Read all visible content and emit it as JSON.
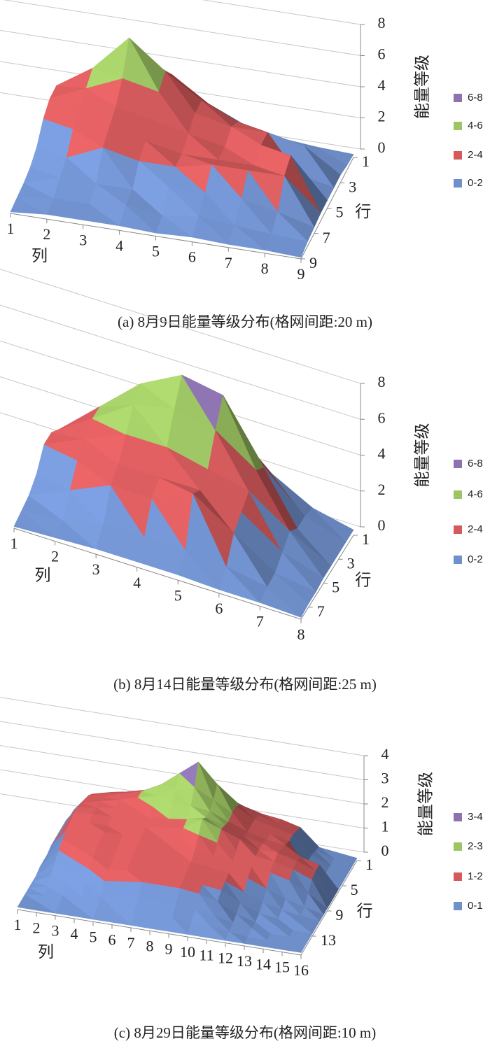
{
  "chart_data": [
    {
      "type": "surface",
      "title": "(a) 8月9日能量等级分布(格网间距:20 m)",
      "xlabel": "列",
      "ylabel": "行",
      "zlabel": "能量等级",
      "x": [
        1,
        2,
        3,
        4,
        5,
        6,
        7,
        8,
        9
      ],
      "y": [
        1,
        2,
        3,
        4,
        5,
        6,
        7,
        8,
        9
      ],
      "z": [
        [
          1.5,
          3.0,
          4.5,
          3.5,
          2.0,
          1.0,
          0.5,
          0.3,
          0.2
        ],
        [
          2.5,
          4.0,
          6.3,
          4.5,
          3.0,
          2.0,
          1.0,
          0.5,
          0.3
        ],
        [
          2.5,
          3.5,
          4.5,
          4.0,
          3.0,
          2.5,
          2.5,
          2.0,
          0.5
        ],
        [
          2.0,
          3.0,
          3.5,
          3.0,
          2.5,
          2.0,
          2.5,
          1.0,
          0.5
        ],
        [
          1.0,
          2.5,
          3.0,
          2.5,
          2.0,
          2.0,
          2.0,
          3.0,
          0.5
        ],
        [
          0.5,
          1.5,
          2.5,
          2.0,
          2.0,
          2.5,
          2.5,
          2.5,
          0.5
        ],
        [
          0.3,
          1.0,
          1.0,
          1.0,
          1.5,
          1.5,
          1.5,
          1.0,
          0.4
        ],
        [
          0.2,
          0.5,
          0.5,
          0.8,
          0.5,
          0.8,
          0.6,
          0.4,
          0.3
        ],
        [
          0.1,
          0.3,
          0.3,
          0.3,
          0.2,
          0.3,
          0.2,
          0.2,
          0.1
        ]
      ],
      "xlim": [
        1,
        9
      ],
      "ylim": [
        1,
        9
      ],
      "zlim": [
        0,
        8
      ],
      "xticks": [
        1,
        2,
        3,
        4,
        5,
        6,
        7,
        8,
        9
      ],
      "yticks": [
        1,
        3,
        5,
        7,
        9
      ],
      "zticks": [
        0,
        2,
        4,
        6,
        8
      ],
      "levels": [
        {
          "name": "6-8",
          "color": "#8c73b0"
        },
        {
          "name": "4-6",
          "color": "#9ec564"
        },
        {
          "name": "2-4",
          "color": "#d45a5c"
        },
        {
          "name": "0-2",
          "color": "#7090cc"
        }
      ]
    },
    {
      "type": "surface",
      "title": "(b) 8月14日能量等级分布(格网间距:25 m)",
      "xlabel": "列",
      "ylabel": "行",
      "zlabel": "能量等级",
      "x": [
        1,
        2,
        3,
        4,
        5,
        6,
        7,
        8
      ],
      "y": [
        1,
        2,
        3,
        4,
        5,
        6,
        7,
        8
      ],
      "z": [
        [
          1.0,
          2.5,
          4.5,
          5.5,
          4.0,
          2.0,
          0.8,
          0.3
        ],
        [
          1.5,
          3.5,
          5.5,
          6.7,
          6.3,
          3.0,
          1.0,
          0.3
        ],
        [
          2.0,
          3.5,
          5.0,
          5.5,
          5.0,
          3.5,
          1.0,
          0.3
        ],
        [
          2.0,
          3.0,
          4.0,
          4.0,
          3.5,
          3.0,
          1.5,
          0.3
        ],
        [
          1.0,
          2.5,
          3.0,
          3.0,
          3.0,
          2.5,
          1.0,
          0.3
        ],
        [
          0.5,
          1.5,
          2.5,
          2.5,
          3.5,
          2.0,
          0.5,
          0.2
        ],
        [
          0.3,
          0.5,
          1.0,
          1.0,
          1.0,
          0.8,
          0.4,
          0.2
        ],
        [
          0.1,
          0.2,
          0.3,
          0.3,
          0.3,
          0.2,
          0.2,
          0.1
        ]
      ],
      "xlim": [
        1,
        8
      ],
      "ylim": [
        1,
        8
      ],
      "zlim": [
        0,
        8
      ],
      "xticks": [
        1,
        2,
        3,
        4,
        5,
        6,
        7,
        8
      ],
      "yticks": [
        1,
        3,
        5,
        7
      ],
      "zticks": [
        0,
        2,
        4,
        6,
        8
      ],
      "levels": [
        {
          "name": "6-8",
          "color": "#8c73b0"
        },
        {
          "name": "4-6",
          "color": "#9ec564"
        },
        {
          "name": "2-4",
          "color": "#d45a5c"
        },
        {
          "name": "0-2",
          "color": "#7090cc"
        }
      ]
    },
    {
      "type": "surface",
      "title": "(c) 8月29日能量等级分布(格网间距:10 m)",
      "xlabel": "列",
      "ylabel": "行",
      "zlabel": "能量等级",
      "x": [
        1,
        2,
        3,
        4,
        5,
        6,
        7,
        8,
        9,
        10,
        11,
        12,
        13,
        14,
        15,
        16
      ],
      "y": [
        1,
        2,
        3,
        4,
        5,
        6,
        7,
        8,
        9,
        10,
        11,
        12,
        13,
        14,
        15,
        16
      ],
      "z": [
        [
          0.2,
          1.0,
          1.2,
          1.3,
          1.5,
          1.6,
          2.0,
          2.2,
          1.8,
          1.5,
          1.3,
          1.2,
          1.0,
          0.3,
          0.2,
          0.1
        ],
        [
          0.2,
          1.2,
          1.4,
          1.6,
          1.8,
          2.2,
          2.6,
          3.0,
          2.4,
          1.8,
          1.5,
          1.3,
          1.1,
          0.4,
          0.2,
          0.1
        ],
        [
          0.3,
          1.3,
          1.5,
          1.8,
          2.0,
          2.4,
          3.0,
          3.6,
          2.8,
          2.0,
          1.6,
          1.4,
          1.2,
          0.5,
          0.2,
          0.1
        ],
        [
          0.3,
          1.4,
          1.6,
          1.8,
          2.0,
          2.2,
          2.6,
          2.8,
          2.4,
          2.0,
          1.6,
          1.4,
          1.2,
          0.5,
          0.2,
          0.1
        ],
        [
          0.3,
          1.5,
          1.6,
          1.7,
          1.8,
          2.0,
          2.2,
          2.3,
          2.2,
          1.9,
          1.6,
          1.4,
          1.3,
          0.6,
          0.2,
          0.1
        ],
        [
          0.3,
          1.5,
          1.6,
          1.6,
          1.7,
          1.8,
          1.9,
          2.0,
          2.2,
          2.0,
          1.7,
          1.5,
          1.4,
          1.2,
          1.0,
          0.1
        ],
        [
          0.3,
          1.4,
          1.5,
          1.5,
          1.6,
          1.7,
          1.8,
          1.9,
          2.4,
          2.1,
          1.8,
          1.5,
          1.5,
          1.3,
          1.0,
          0.1
        ],
        [
          0.2,
          1.3,
          1.4,
          1.5,
          1.5,
          1.6,
          1.6,
          1.7,
          2.0,
          1.8,
          1.6,
          1.5,
          1.4,
          1.2,
          0.9,
          0.1
        ],
        [
          0.2,
          1.2,
          1.3,
          1.4,
          1.4,
          1.5,
          1.5,
          1.5,
          1.6,
          1.5,
          1.4,
          1.3,
          1.2,
          1.0,
          0.6,
          0.1
        ],
        [
          0.2,
          1.0,
          1.2,
          1.3,
          1.3,
          1.4,
          1.4,
          1.4,
          1.4,
          1.3,
          1.2,
          1.1,
          0.8,
          0.5,
          0.3,
          0.1
        ],
        [
          0.1,
          0.8,
          1.0,
          1.2,
          1.2,
          1.3,
          1.3,
          1.3,
          1.3,
          1.2,
          1.1,
          0.8,
          0.5,
          0.3,
          0.2,
          0.1
        ],
        [
          0.1,
          0.5,
          0.8,
          1.0,
          1.1,
          1.2,
          1.2,
          1.2,
          1.2,
          1.1,
          1.0,
          0.6,
          0.3,
          0.2,
          0.2,
          0.1
        ],
        [
          0.1,
          0.3,
          0.5,
          0.7,
          0.9,
          1.0,
          1.1,
          1.1,
          1.1,
          1.0,
          0.8,
          0.4,
          0.2,
          0.2,
          0.1,
          0.1
        ],
        [
          0.1,
          0.2,
          0.3,
          0.4,
          0.5,
          0.6,
          0.7,
          0.7,
          0.7,
          0.6,
          0.5,
          0.3,
          0.2,
          0.1,
          0.1,
          0.1
        ],
        [
          0.1,
          0.1,
          0.2,
          0.2,
          0.3,
          0.3,
          0.4,
          0.4,
          0.4,
          0.3,
          0.3,
          0.2,
          0.1,
          0.1,
          0.1,
          0.1
        ],
        [
          0.1,
          0.1,
          0.1,
          0.1,
          0.1,
          0.1,
          0.1,
          0.1,
          0.1,
          0.1,
          0.1,
          0.1,
          0.1,
          0.1,
          0.1,
          0.1
        ]
      ],
      "xlim": [
        1,
        16
      ],
      "ylim": [
        1,
        16
      ],
      "zlim": [
        0,
        4
      ],
      "xticks": [
        1,
        2,
        3,
        4,
        5,
        6,
        7,
        8,
        9,
        10,
        11,
        12,
        13,
        14,
        15,
        16
      ],
      "yticks": [
        1,
        5,
        9,
        13
      ],
      "zticks": [
        0,
        1,
        2,
        3,
        4
      ],
      "levels": [
        {
          "name": "3-4",
          "color": "#8c73b0"
        },
        {
          "name": "2-3",
          "color": "#9ec564"
        },
        {
          "name": "1-2",
          "color": "#d45a5c"
        },
        {
          "name": "0-1",
          "color": "#7090cc"
        }
      ]
    }
  ]
}
